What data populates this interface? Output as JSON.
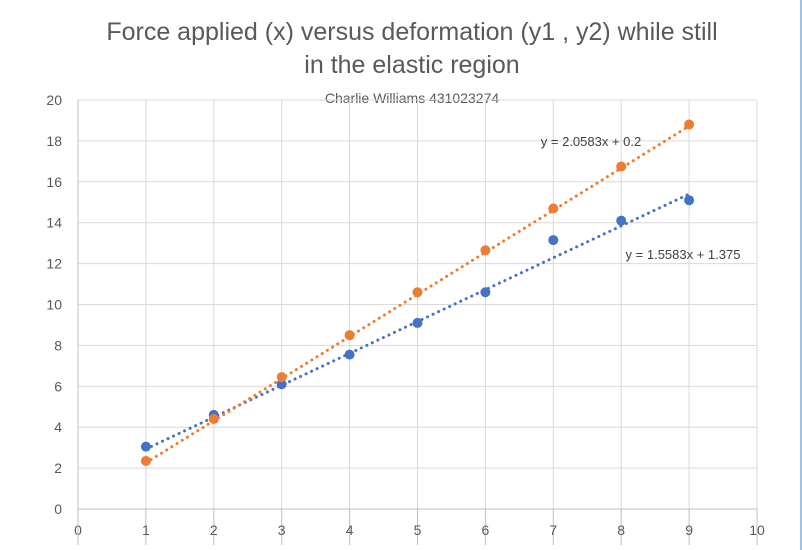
{
  "chart_data": {
    "type": "scatter",
    "title_lines": [
      "Force applied (x) versus deformation (y1 , y2) while still",
      "in the elastic region"
    ],
    "subtitle": "Charlie Williams 431023274",
    "xlabel": "",
    "ylabel": "",
    "xlim": [
      0,
      10
    ],
    "ylim": [
      0,
      20
    ],
    "x_ticks": [
      0,
      1,
      2,
      3,
      4,
      5,
      6,
      7,
      8,
      9,
      10
    ],
    "y_ticks": [
      0,
      2,
      4,
      6,
      8,
      10,
      12,
      14,
      16,
      18,
      20
    ],
    "grid": true,
    "legend": "none",
    "series": [
      {
        "name": "y1",
        "color": "#4472c4",
        "x": [
          1,
          2,
          3,
          4,
          5,
          6,
          7,
          8,
          9
        ],
        "y": [
          3.05,
          4.6,
          6.1,
          7.55,
          9.1,
          10.6,
          13.15,
          14.1,
          15.1
        ],
        "trendline": {
          "type": "linear",
          "slope": 1.5583,
          "intercept": 1.375,
          "x_range": [
            1,
            9
          ],
          "equation": "y = 1.5583x + 1.375"
        }
      },
      {
        "name": "y2",
        "color": "#ed7d31",
        "x": [
          1,
          2,
          3,
          4,
          5,
          6,
          7,
          8,
          9
        ],
        "y": [
          2.35,
          4.4,
          6.45,
          8.5,
          10.6,
          12.65,
          14.7,
          16.75,
          18.8
        ],
        "trendline": {
          "type": "linear",
          "slope": 2.0583,
          "intercept": 0.2,
          "x_range": [
            1,
            9
          ],
          "equation": "y = 2.0583x + 0.2"
        }
      }
    ]
  }
}
